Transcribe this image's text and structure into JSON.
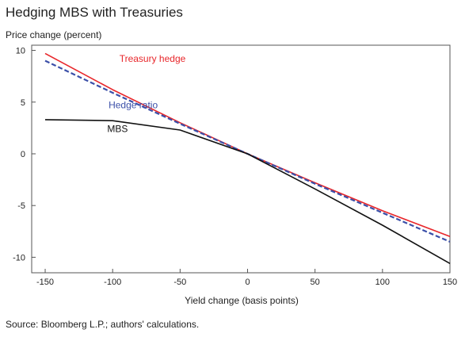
{
  "chart_data": {
    "type": "line",
    "title": "Hedging MBS with Treasuries",
    "ylabel": "Price change (percent)",
    "xlabel": "Yield change (basis points)",
    "source": "Source: Bloomberg L.P.; authors' calculations.",
    "xlim": [
      -160,
      150
    ],
    "ylim": [
      -11.5,
      10.5
    ],
    "xticks": [
      -150,
      -100,
      -50,
      0,
      50,
      100,
      150
    ],
    "yticks": [
      10,
      5,
      0,
      -5,
      -10
    ],
    "grid": false,
    "series": [
      {
        "name": "Treasury hedge",
        "color": "#e8262a",
        "dash": "solid",
        "x": [
          -150,
          -100,
          -50,
          0,
          50,
          100,
          150
        ],
        "y": [
          9.7,
          6.2,
          3.0,
          0.0,
          -2.8,
          -5.5,
          -8.0
        ]
      },
      {
        "name": "Hedge ratio",
        "color": "#3b4fa8",
        "dash": "dashed",
        "x": [
          -150,
          -100,
          -50,
          0,
          50,
          100,
          150
        ],
        "y": [
          9.0,
          5.9,
          2.9,
          0.0,
          -2.9,
          -5.7,
          -8.5
        ]
      },
      {
        "name": "MBS",
        "color": "#111111",
        "dash": "solid",
        "x": [
          -150,
          -100,
          -50,
          0,
          50,
          100,
          150
        ],
        "y": [
          3.3,
          3.2,
          2.3,
          0.0,
          -3.4,
          -6.9,
          -10.6
        ]
      }
    ],
    "annotations": [
      {
        "text": "Treasury hedge",
        "series": 0,
        "x": -95,
        "y": 9.2,
        "color": "#e8262a"
      },
      {
        "text": "Hedge ratio",
        "series": 1,
        "x": -103,
        "y": 4.7,
        "color": "#3b4fa8"
      },
      {
        "text": "MBS",
        "series": 2,
        "x": -104,
        "y": 2.4,
        "color": "#111111"
      }
    ]
  }
}
